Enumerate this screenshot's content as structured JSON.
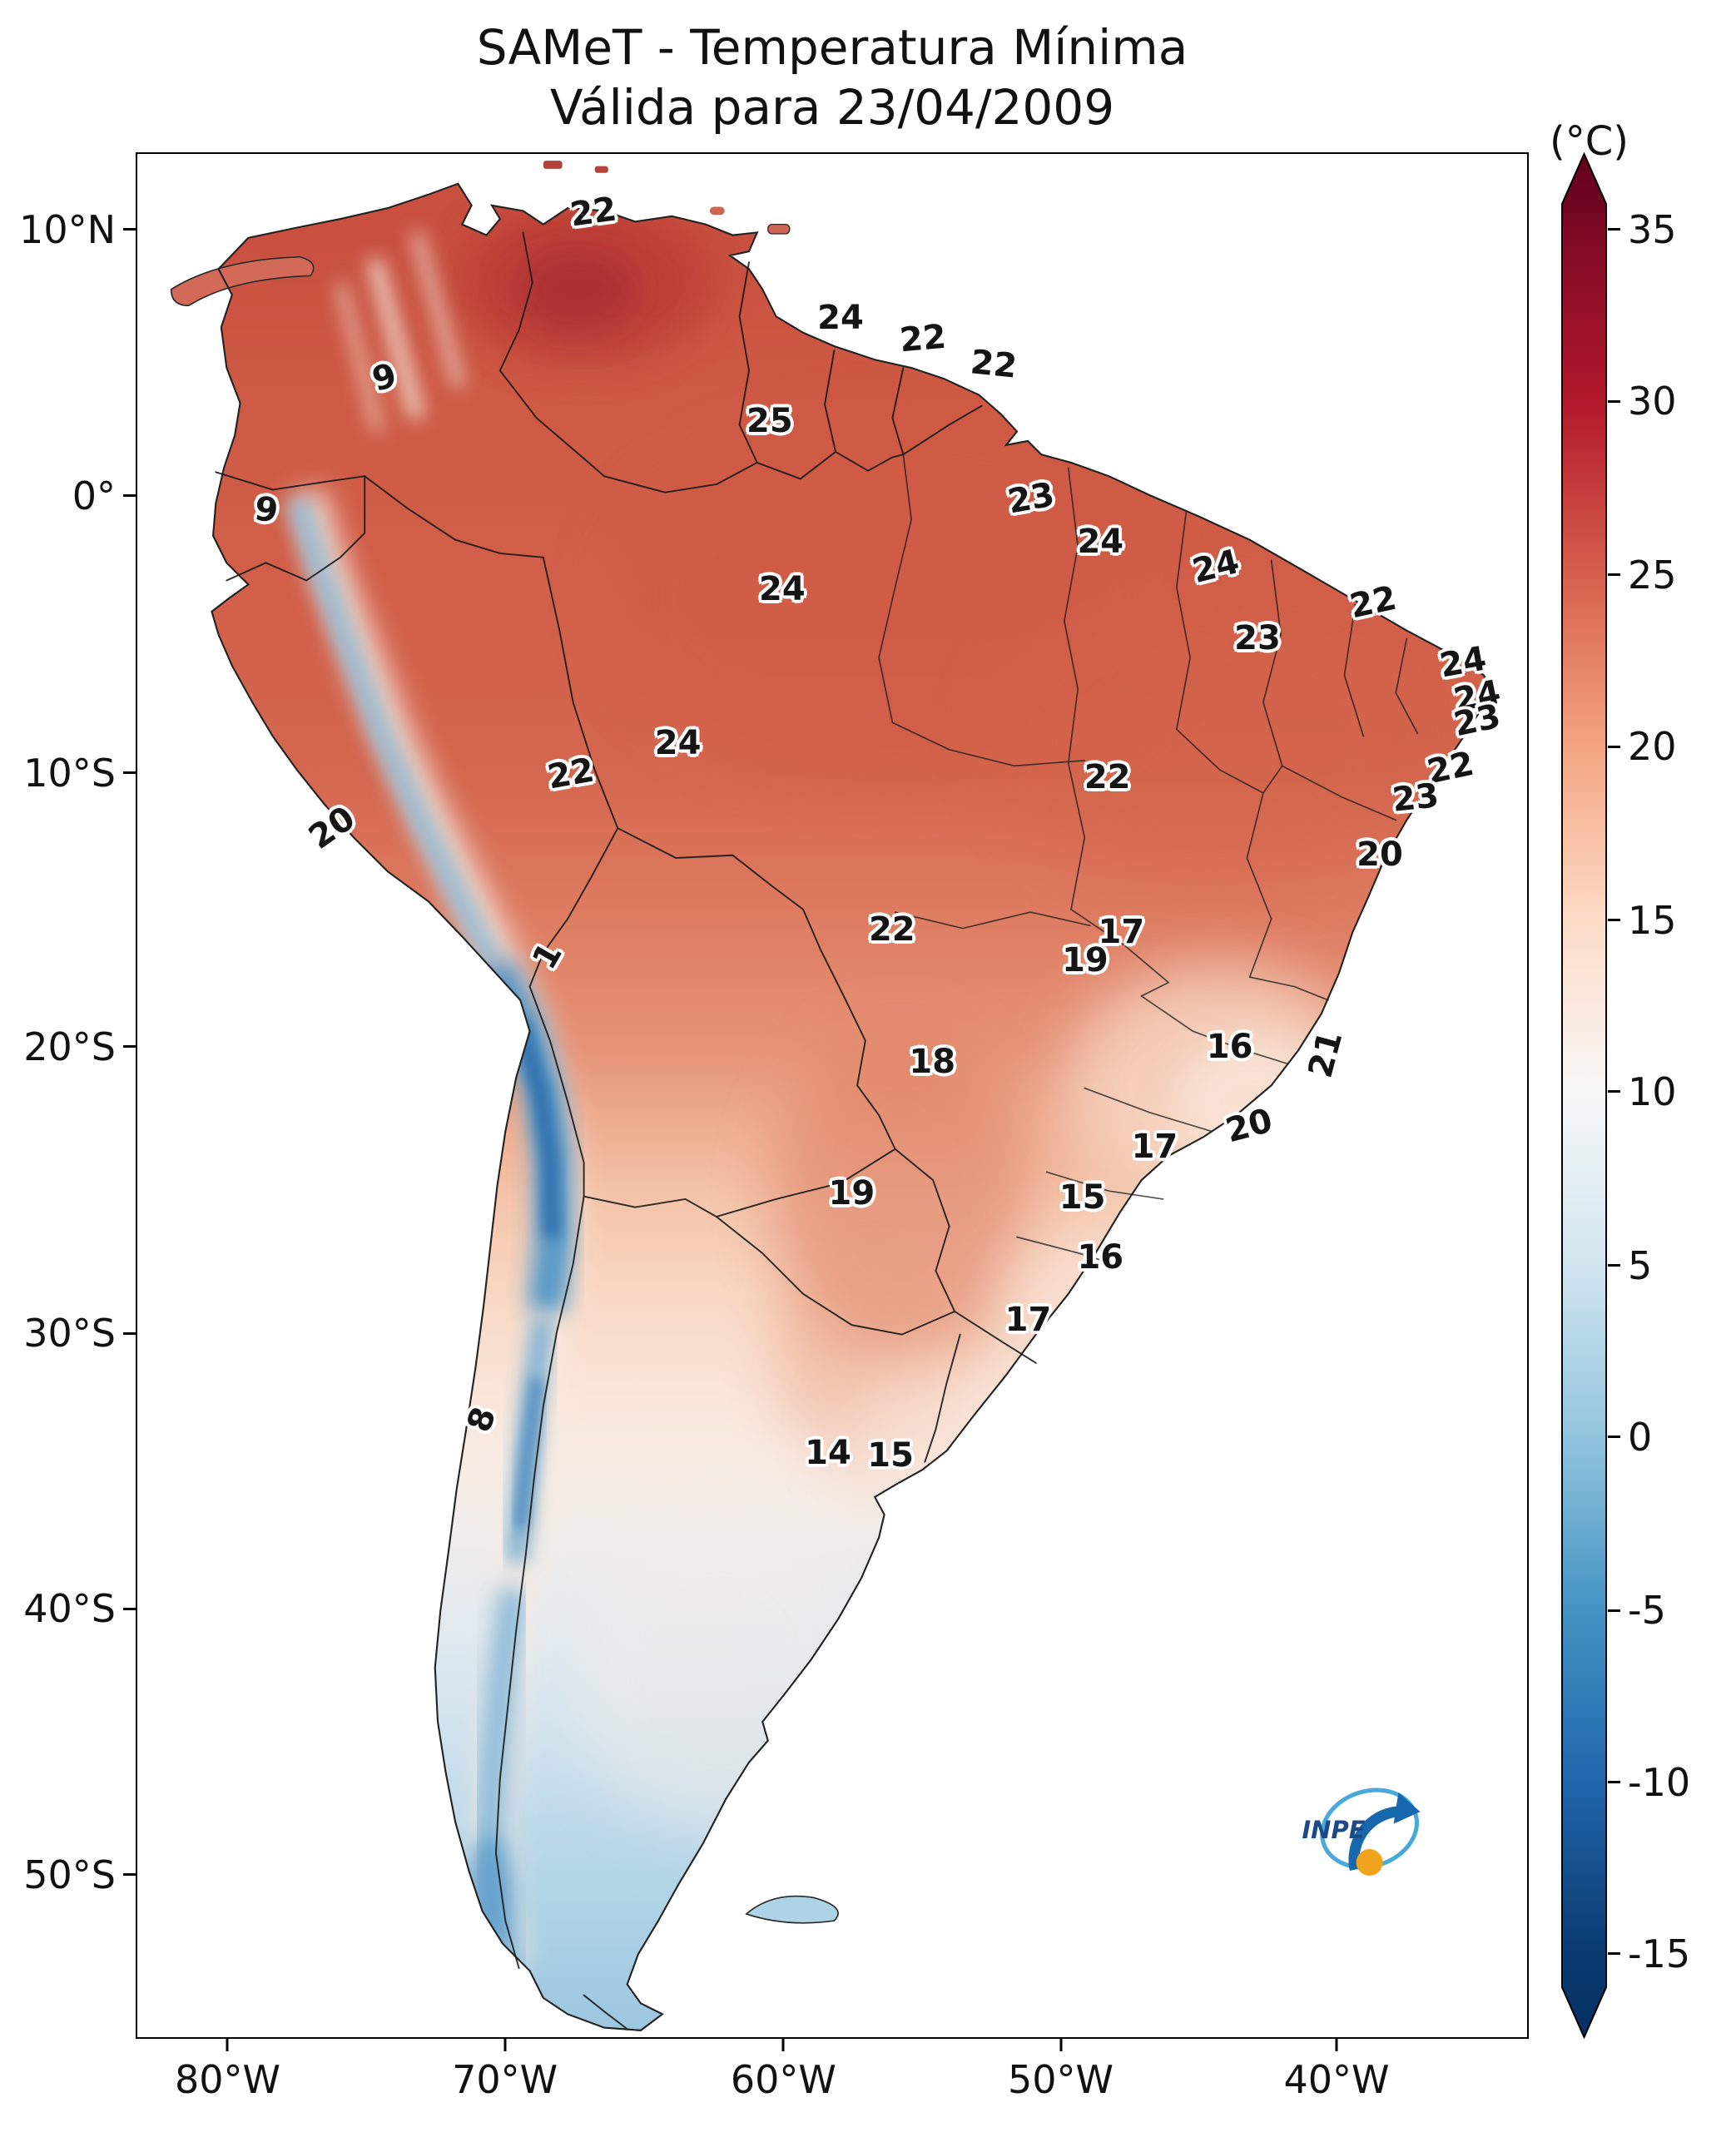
{
  "figure": {
    "title_line1": "SAMeT - Temperatura Mínima",
    "title_line2": "Válida para 23/04/2009"
  },
  "colorbar": {
    "unit_label": "(°C)",
    "max_color": "#67001f",
    "min_color": "#053061",
    "ticks": [
      {
        "label": "35",
        "pos": 4.1
      },
      {
        "label": "30",
        "pos": 13.2
      },
      {
        "label": "25",
        "pos": 22.4
      },
      {
        "label": "20",
        "pos": 31.5
      },
      {
        "label": "15",
        "pos": 40.7
      },
      {
        "label": "10",
        "pos": 49.8
      },
      {
        "label": "5",
        "pos": 59.0
      },
      {
        "label": "0",
        "pos": 68.1
      },
      {
        "label": "-5",
        "pos": 77.3
      },
      {
        "label": "-10",
        "pos": 86.4
      },
      {
        "label": "-15",
        "pos": 95.5
      }
    ]
  },
  "axes": {
    "y_ticks": [
      {
        "label": "10°N",
        "pos": 4.1
      },
      {
        "label": "0°",
        "pos": 18.2
      },
      {
        "label": "10°S",
        "pos": 32.9
      },
      {
        "label": "20°S",
        "pos": 47.4
      },
      {
        "label": "30°S",
        "pos": 62.6
      },
      {
        "label": "40°S",
        "pos": 77.2
      },
      {
        "label": "50°S",
        "pos": 91.3
      }
    ],
    "x_ticks": [
      {
        "label": "80°W",
        "pos": 6.6
      },
      {
        "label": "70°W",
        "pos": 26.5
      },
      {
        "label": "60°W",
        "pos": 46.5
      },
      {
        "label": "50°W",
        "pos": 66.4
      },
      {
        "label": "40°W",
        "pos": 86.2
      }
    ]
  },
  "logo": {
    "text": "INPE"
  },
  "chart_data": {
    "type": "heatmap",
    "title": "SAMeT - Temperatura Mínima",
    "subtitle": "Válida para 23/04/2009",
    "units": "°C",
    "colormap": "RdBu_r",
    "value_range": [
      -15,
      35
    ],
    "colorbar_ticks": [
      35,
      30,
      25,
      20,
      15,
      10,
      5,
      0,
      -5,
      -10,
      -15
    ],
    "lat_ticks": [
      "10°N",
      "0°",
      "10°S",
      "20°S",
      "30°S",
      "40°S",
      "50°S"
    ],
    "lon_ticks": [
      "80°W",
      "70°W",
      "60°W",
      "50°W",
      "40°W"
    ],
    "point_labels": [
      {
        "v": "22",
        "x": 32.8,
        "y": 3.1,
        "r": -8
      },
      {
        "v": "24",
        "x": 50.6,
        "y": 8.7,
        "r": 0
      },
      {
        "v": "22",
        "x": 56.5,
        "y": 9.8,
        "r": -5
      },
      {
        "v": "22",
        "x": 61.6,
        "y": 11.2,
        "r": 6
      },
      {
        "v": "25",
        "x": 45.5,
        "y": 14.2,
        "r": 0
      },
      {
        "v": "9",
        "x": 17.8,
        "y": 11.9,
        "r": -15
      },
      {
        "v": "23",
        "x": 64.3,
        "y": 18.3,
        "r": -10
      },
      {
        "v": "9",
        "x": 9.3,
        "y": 18.9,
        "r": 8
      },
      {
        "v": "24",
        "x": 69.3,
        "y": 20.6,
        "r": 0
      },
      {
        "v": "24",
        "x": 77.6,
        "y": 21.9,
        "r": -14
      },
      {
        "v": "24",
        "x": 46.4,
        "y": 23.1,
        "r": 0
      },
      {
        "v": "22",
        "x": 88.9,
        "y": 23.8,
        "r": -12
      },
      {
        "v": "23",
        "x": 80.6,
        "y": 25.7,
        "r": 0
      },
      {
        "v": "24",
        "x": 95.4,
        "y": 27.0,
        "r": -10
      },
      {
        "v": "24",
        "x": 96.4,
        "y": 28.8,
        "r": -12
      },
      {
        "v": "23",
        "x": 96.4,
        "y": 30.1,
        "r": -12
      },
      {
        "v": "24",
        "x": 38.9,
        "y": 31.3,
        "r": 0
      },
      {
        "v": "22",
        "x": 31.2,
        "y": 32.9,
        "r": -10
      },
      {
        "v": "22",
        "x": 69.8,
        "y": 33.1,
        "r": 0
      },
      {
        "v": "22",
        "x": 94.5,
        "y": 32.6,
        "r": -12
      },
      {
        "v": "23",
        "x": 92.0,
        "y": 34.2,
        "r": -6
      },
      {
        "v": "20",
        "x": 14.0,
        "y": 35.8,
        "r": -35
      },
      {
        "v": "20",
        "x": 89.4,
        "y": 37.2,
        "r": 0
      },
      {
        "v": "1",
        "x": 29.5,
        "y": 42.6,
        "r": -60
      },
      {
        "v": "22",
        "x": 54.3,
        "y": 41.2,
        "r": 0
      },
      {
        "v": "17",
        "x": 70.8,
        "y": 41.3,
        "r": 0
      },
      {
        "v": "19",
        "x": 68.2,
        "y": 42.8,
        "r": 0
      },
      {
        "v": "18",
        "x": 57.2,
        "y": 48.2,
        "r": 0
      },
      {
        "v": "16",
        "x": 78.6,
        "y": 47.4,
        "r": 0
      },
      {
        "v": "21",
        "x": 85.5,
        "y": 47.8,
        "r": -75
      },
      {
        "v": "20",
        "x": 80.0,
        "y": 51.6,
        "r": -15
      },
      {
        "v": "17",
        "x": 73.2,
        "y": 52.7,
        "r": 0
      },
      {
        "v": "19",
        "x": 51.4,
        "y": 55.2,
        "r": 0
      },
      {
        "v": "15",
        "x": 68.0,
        "y": 55.4,
        "r": 0
      },
      {
        "v": "16",
        "x": 69.3,
        "y": 58.6,
        "r": 0
      },
      {
        "v": "17",
        "x": 64.1,
        "y": 61.9,
        "r": 0
      },
      {
        "v": "8",
        "x": 24.8,
        "y": 67.2,
        "r": -70
      },
      {
        "v": "14",
        "x": 49.7,
        "y": 69.0,
        "r": 0
      },
      {
        "v": "15",
        "x": 54.2,
        "y": 69.1,
        "r": 0
      }
    ]
  }
}
